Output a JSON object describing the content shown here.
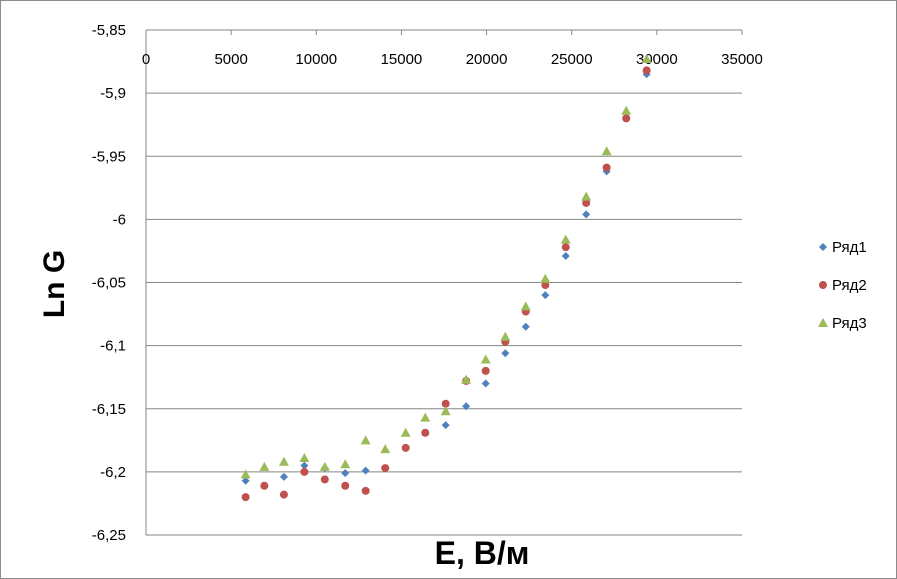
{
  "chart_data": {
    "type": "scatter",
    "xlabel": "E,  В/м",
    "ylabel": "Ln G",
    "xlim": [
      0,
      35000
    ],
    "ylim": [
      -6.25,
      -5.85
    ],
    "x_ticks": [
      "0",
      "5000",
      "10000",
      "15000",
      "20000",
      "25000",
      "30000",
      "35000"
    ],
    "y_ticks": [
      "-5,85",
      "-5,9",
      "-5,95",
      "-6",
      "-6,05",
      "-6,1",
      "-6,15",
      "-6,2",
      "-6,25"
    ],
    "grid": true,
    "x_axis_position": "top",
    "legend_position": "right",
    "series": [
      {
        "name": "Ряд1",
        "marker": "diamond",
        "color": "#4f81bd",
        "x": [
          5850,
          8100,
          9300,
          10500,
          11700,
          12900,
          17600,
          18800,
          19950,
          21100,
          22300,
          23450,
          24650,
          25850,
          27050,
          29400
        ],
        "y": [
          -6.207,
          -6.204,
          -6.195,
          -6.197,
          -6.201,
          -6.199,
          -6.163,
          -6.148,
          -6.13,
          -6.106,
          -6.085,
          -6.06,
          -6.029,
          -5.996,
          -5.962,
          -5.885
        ]
      },
      {
        "name": "Ряд2",
        "marker": "circle",
        "color": "#c0504d",
        "x": [
          5850,
          6950,
          8100,
          9300,
          10500,
          11700,
          12900,
          14050,
          15250,
          16400,
          17600,
          18800,
          19950,
          21100,
          22300,
          23450,
          24650,
          25850,
          27050,
          28200,
          29400
        ],
        "y": [
          -6.22,
          -6.211,
          -6.218,
          -6.2,
          -6.206,
          -6.211,
          -6.215,
          -6.197,
          -6.181,
          -6.169,
          -6.146,
          -6.128,
          -6.12,
          -6.097,
          -6.073,
          -6.052,
          -6.022,
          -5.987,
          -5.959,
          -5.92,
          -5.882
        ]
      },
      {
        "name": "Ряд3",
        "marker": "triangle",
        "color": "#9bbb59",
        "x": [
          5850,
          6950,
          8100,
          9300,
          10500,
          11700,
          12900,
          14050,
          15250,
          16400,
          17600,
          18800,
          19950,
          21100,
          22300,
          23450,
          24650,
          25850,
          27050,
          28200,
          29400
        ],
        "y": [
          -6.202,
          -6.196,
          -6.192,
          -6.189,
          -6.196,
          -6.194,
          -6.175,
          -6.182,
          -6.169,
          -6.157,
          -6.152,
          -6.127,
          -6.111,
          -6.093,
          -6.069,
          -6.047,
          -6.016,
          -5.982,
          -5.946,
          -5.914,
          -5.873
        ]
      }
    ]
  }
}
